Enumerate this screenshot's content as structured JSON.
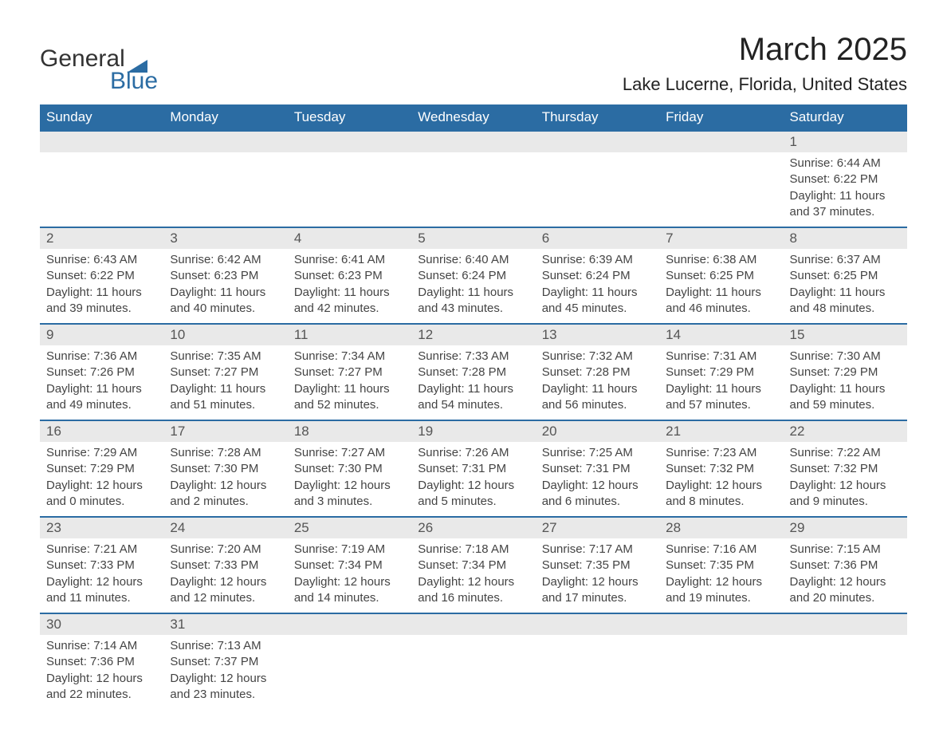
{
  "brand": {
    "text_general": "General",
    "text_blue": "Blue",
    "sail_color": "#2b6ca3"
  },
  "title": "March 2025",
  "location": "Lake Lucerne, Florida, United States",
  "colors": {
    "header_bg": "#2b6ca3",
    "header_fg": "#ffffff",
    "daynum_bg": "#e9e9e9",
    "row_border": "#2b6ca3",
    "text": "#444444"
  },
  "weekdays": [
    "Sunday",
    "Monday",
    "Tuesday",
    "Wednesday",
    "Thursday",
    "Friday",
    "Saturday"
  ],
  "weeks": [
    [
      null,
      null,
      null,
      null,
      null,
      null,
      {
        "n": "1",
        "sunrise": "Sunrise: 6:44 AM",
        "sunset": "Sunset: 6:22 PM",
        "day1": "Daylight: 11 hours",
        "day2": "and 37 minutes."
      }
    ],
    [
      {
        "n": "2",
        "sunrise": "Sunrise: 6:43 AM",
        "sunset": "Sunset: 6:22 PM",
        "day1": "Daylight: 11 hours",
        "day2": "and 39 minutes."
      },
      {
        "n": "3",
        "sunrise": "Sunrise: 6:42 AM",
        "sunset": "Sunset: 6:23 PM",
        "day1": "Daylight: 11 hours",
        "day2": "and 40 minutes."
      },
      {
        "n": "4",
        "sunrise": "Sunrise: 6:41 AM",
        "sunset": "Sunset: 6:23 PM",
        "day1": "Daylight: 11 hours",
        "day2": "and 42 minutes."
      },
      {
        "n": "5",
        "sunrise": "Sunrise: 6:40 AM",
        "sunset": "Sunset: 6:24 PM",
        "day1": "Daylight: 11 hours",
        "day2": "and 43 minutes."
      },
      {
        "n": "6",
        "sunrise": "Sunrise: 6:39 AM",
        "sunset": "Sunset: 6:24 PM",
        "day1": "Daylight: 11 hours",
        "day2": "and 45 minutes."
      },
      {
        "n": "7",
        "sunrise": "Sunrise: 6:38 AM",
        "sunset": "Sunset: 6:25 PM",
        "day1": "Daylight: 11 hours",
        "day2": "and 46 minutes."
      },
      {
        "n": "8",
        "sunrise": "Sunrise: 6:37 AM",
        "sunset": "Sunset: 6:25 PM",
        "day1": "Daylight: 11 hours",
        "day2": "and 48 minutes."
      }
    ],
    [
      {
        "n": "9",
        "sunrise": "Sunrise: 7:36 AM",
        "sunset": "Sunset: 7:26 PM",
        "day1": "Daylight: 11 hours",
        "day2": "and 49 minutes."
      },
      {
        "n": "10",
        "sunrise": "Sunrise: 7:35 AM",
        "sunset": "Sunset: 7:27 PM",
        "day1": "Daylight: 11 hours",
        "day2": "and 51 minutes."
      },
      {
        "n": "11",
        "sunrise": "Sunrise: 7:34 AM",
        "sunset": "Sunset: 7:27 PM",
        "day1": "Daylight: 11 hours",
        "day2": "and 52 minutes."
      },
      {
        "n": "12",
        "sunrise": "Sunrise: 7:33 AM",
        "sunset": "Sunset: 7:28 PM",
        "day1": "Daylight: 11 hours",
        "day2": "and 54 minutes."
      },
      {
        "n": "13",
        "sunrise": "Sunrise: 7:32 AM",
        "sunset": "Sunset: 7:28 PM",
        "day1": "Daylight: 11 hours",
        "day2": "and 56 minutes."
      },
      {
        "n": "14",
        "sunrise": "Sunrise: 7:31 AM",
        "sunset": "Sunset: 7:29 PM",
        "day1": "Daylight: 11 hours",
        "day2": "and 57 minutes."
      },
      {
        "n": "15",
        "sunrise": "Sunrise: 7:30 AM",
        "sunset": "Sunset: 7:29 PM",
        "day1": "Daylight: 11 hours",
        "day2": "and 59 minutes."
      }
    ],
    [
      {
        "n": "16",
        "sunrise": "Sunrise: 7:29 AM",
        "sunset": "Sunset: 7:29 PM",
        "day1": "Daylight: 12 hours",
        "day2": "and 0 minutes."
      },
      {
        "n": "17",
        "sunrise": "Sunrise: 7:28 AM",
        "sunset": "Sunset: 7:30 PM",
        "day1": "Daylight: 12 hours",
        "day2": "and 2 minutes."
      },
      {
        "n": "18",
        "sunrise": "Sunrise: 7:27 AM",
        "sunset": "Sunset: 7:30 PM",
        "day1": "Daylight: 12 hours",
        "day2": "and 3 minutes."
      },
      {
        "n": "19",
        "sunrise": "Sunrise: 7:26 AM",
        "sunset": "Sunset: 7:31 PM",
        "day1": "Daylight: 12 hours",
        "day2": "and 5 minutes."
      },
      {
        "n": "20",
        "sunrise": "Sunrise: 7:25 AM",
        "sunset": "Sunset: 7:31 PM",
        "day1": "Daylight: 12 hours",
        "day2": "and 6 minutes."
      },
      {
        "n": "21",
        "sunrise": "Sunrise: 7:23 AM",
        "sunset": "Sunset: 7:32 PM",
        "day1": "Daylight: 12 hours",
        "day2": "and 8 minutes."
      },
      {
        "n": "22",
        "sunrise": "Sunrise: 7:22 AM",
        "sunset": "Sunset: 7:32 PM",
        "day1": "Daylight: 12 hours",
        "day2": "and 9 minutes."
      }
    ],
    [
      {
        "n": "23",
        "sunrise": "Sunrise: 7:21 AM",
        "sunset": "Sunset: 7:33 PM",
        "day1": "Daylight: 12 hours",
        "day2": "and 11 minutes."
      },
      {
        "n": "24",
        "sunrise": "Sunrise: 7:20 AM",
        "sunset": "Sunset: 7:33 PM",
        "day1": "Daylight: 12 hours",
        "day2": "and 12 minutes."
      },
      {
        "n": "25",
        "sunrise": "Sunrise: 7:19 AM",
        "sunset": "Sunset: 7:34 PM",
        "day1": "Daylight: 12 hours",
        "day2": "and 14 minutes."
      },
      {
        "n": "26",
        "sunrise": "Sunrise: 7:18 AM",
        "sunset": "Sunset: 7:34 PM",
        "day1": "Daylight: 12 hours",
        "day2": "and 16 minutes."
      },
      {
        "n": "27",
        "sunrise": "Sunrise: 7:17 AM",
        "sunset": "Sunset: 7:35 PM",
        "day1": "Daylight: 12 hours",
        "day2": "and 17 minutes."
      },
      {
        "n": "28",
        "sunrise": "Sunrise: 7:16 AM",
        "sunset": "Sunset: 7:35 PM",
        "day1": "Daylight: 12 hours",
        "day2": "and 19 minutes."
      },
      {
        "n": "29",
        "sunrise": "Sunrise: 7:15 AM",
        "sunset": "Sunset: 7:36 PM",
        "day1": "Daylight: 12 hours",
        "day2": "and 20 minutes."
      }
    ],
    [
      {
        "n": "30",
        "sunrise": "Sunrise: 7:14 AM",
        "sunset": "Sunset: 7:36 PM",
        "day1": "Daylight: 12 hours",
        "day2": "and 22 minutes."
      },
      {
        "n": "31",
        "sunrise": "Sunrise: 7:13 AM",
        "sunset": "Sunset: 7:37 PM",
        "day1": "Daylight: 12 hours",
        "day2": "and 23 minutes."
      },
      null,
      null,
      null,
      null,
      null
    ]
  ]
}
